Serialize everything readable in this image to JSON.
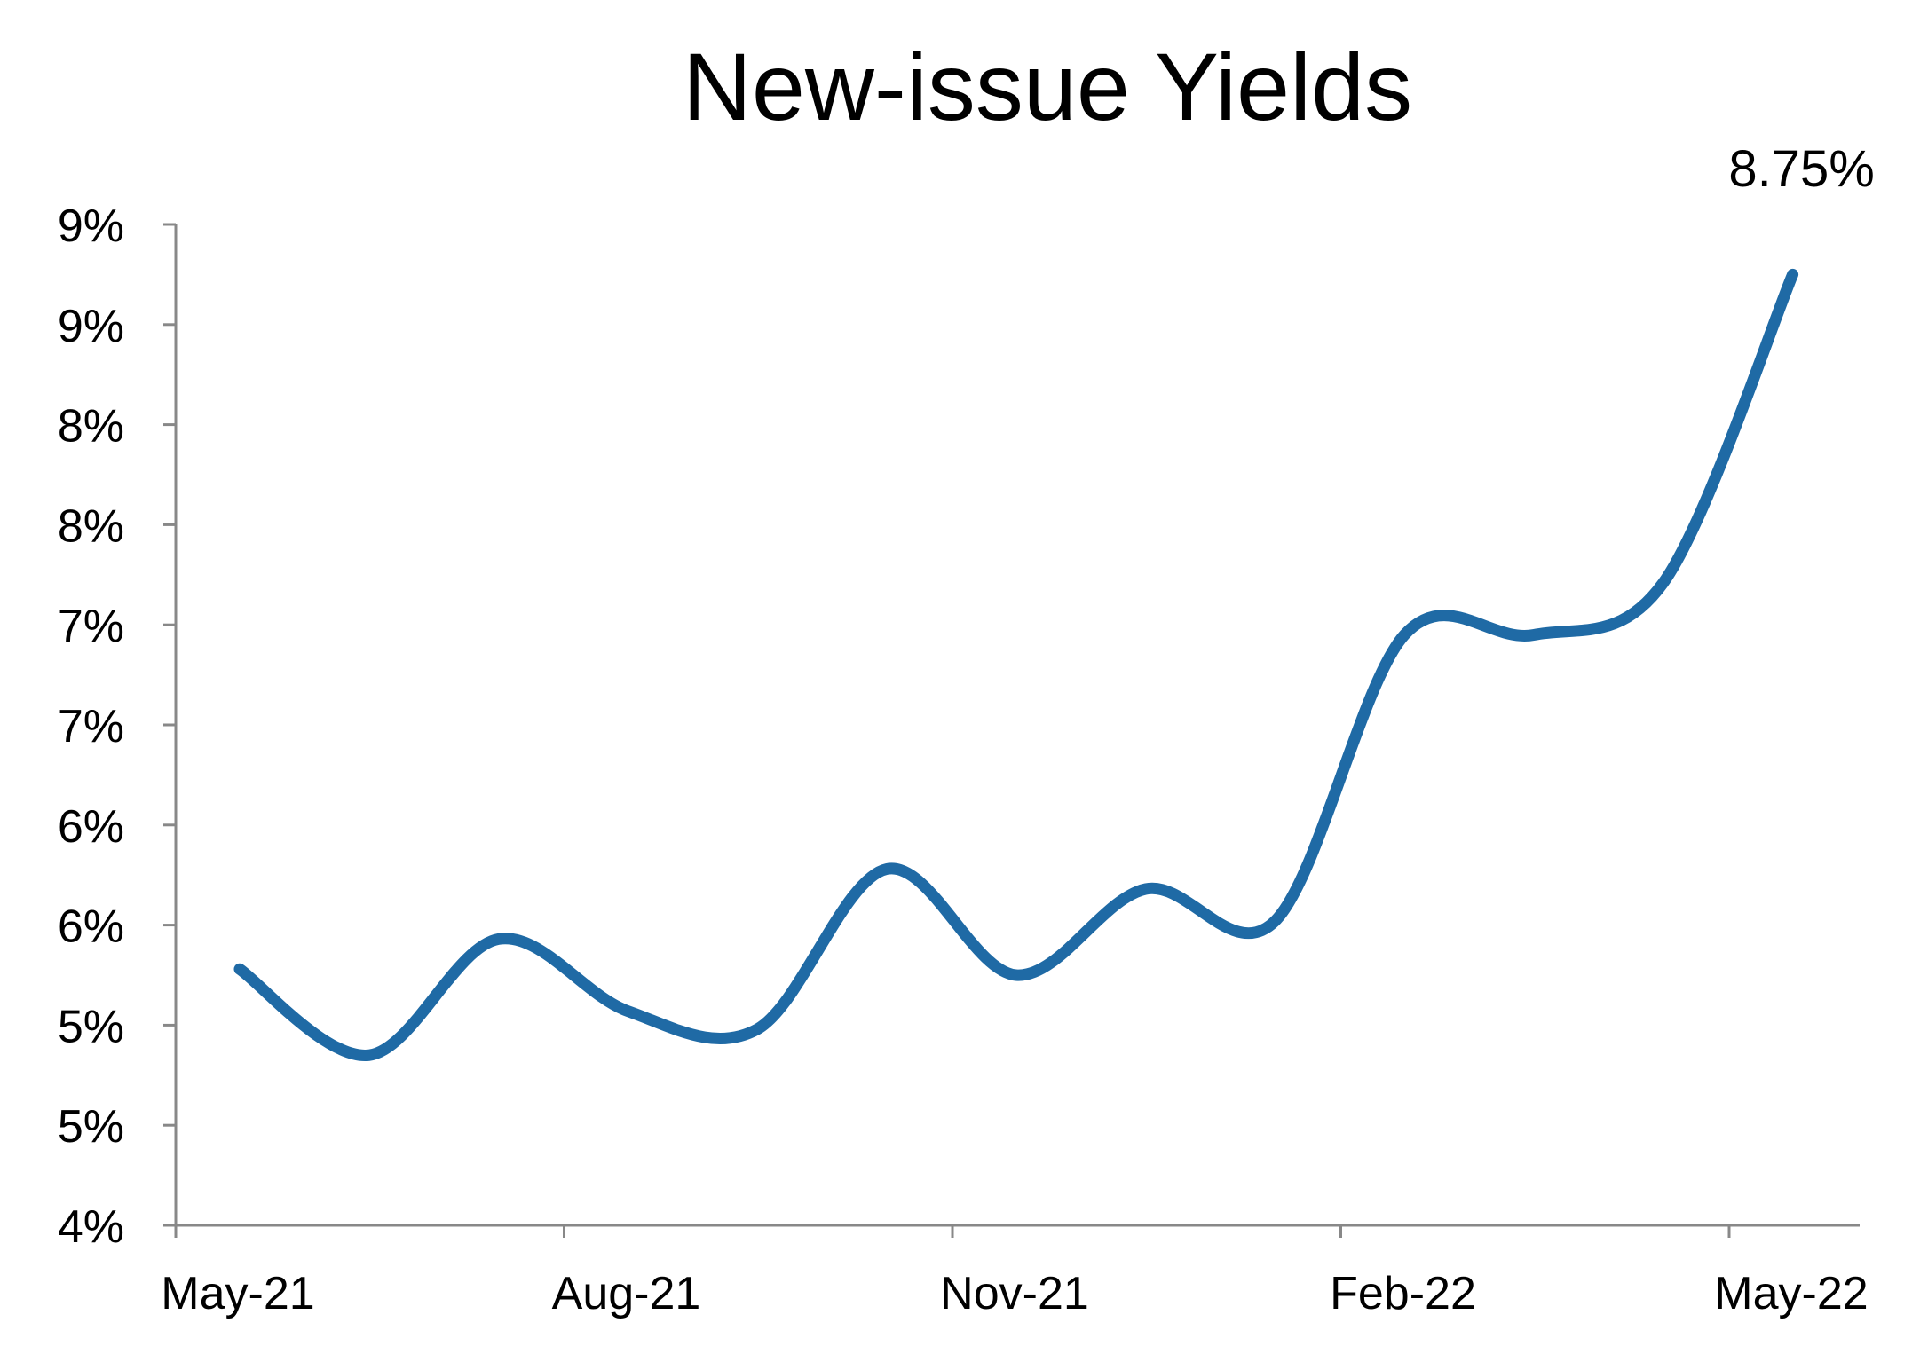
{
  "chart_data": {
    "type": "line",
    "title": "New-issue Yields",
    "xlabel": "",
    "ylabel": "",
    "x_tick_labels": [
      "May-21",
      "Aug-21",
      "Nov-21",
      "Feb-22",
      "May-22"
    ],
    "y_tick_labels": [
      "4%",
      "5%",
      "5%",
      "6%",
      "6%",
      "7%",
      "7%",
      "8%",
      "8%",
      "9%",
      "9%"
    ],
    "y_tick_values": [
      4.0,
      4.5,
      5.0,
      5.5,
      6.0,
      6.5,
      7.0,
      7.5,
      8.0,
      8.5,
      9.0
    ],
    "ylim": [
      4.0,
      9.0
    ],
    "grid": false,
    "legend": "none",
    "annotation": {
      "text": "8.75%",
      "x": "May-22",
      "y": 8.75
    },
    "series": [
      {
        "color": "#1f6aa5",
        "points": [
          {
            "x": "2021-05",
            "y": 5.28
          },
          {
            "x": "2021-06",
            "y": 4.85
          },
          {
            "x": "2021-07",
            "y": 5.43
          },
          {
            "x": "2021-08",
            "y": 5.07
          },
          {
            "x": "2021-09",
            "y": 4.98
          },
          {
            "x": "2021-10",
            "y": 5.78
          },
          {
            "x": "2021-11",
            "y": 5.25
          },
          {
            "x": "2021-12",
            "y": 5.68
          },
          {
            "x": "2022-01",
            "y": 5.52
          },
          {
            "x": "2022-02",
            "y": 6.95
          },
          {
            "x": "2022-03",
            "y": 6.95
          },
          {
            "x": "2022-04",
            "y": 7.21
          },
          {
            "x": "2022-05",
            "y": 8.75
          }
        ]
      }
    ]
  }
}
